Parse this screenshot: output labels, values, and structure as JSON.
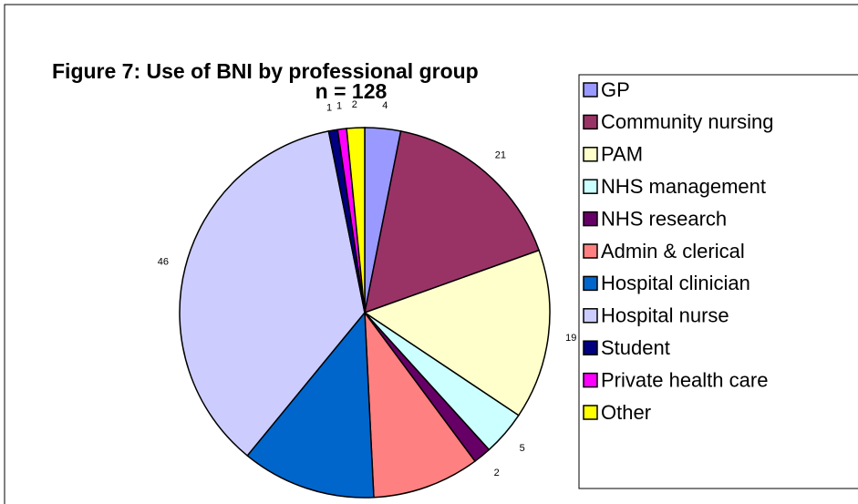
{
  "chart_data": {
    "type": "pie",
    "title": "Figure 7: Use of BNI by professional group",
    "subtitle": "n = 128",
    "categories": [
      "GP",
      "Community nursing",
      "PAM",
      "NHS management",
      "NHS research",
      "Admin & clerical",
      "Hospital clinician",
      "Hospital nurse",
      "Student",
      "Private health care",
      "Other"
    ],
    "values": [
      4,
      21,
      19,
      5,
      2,
      12,
      15,
      46,
      1,
      1,
      2
    ],
    "colors": [
      "#9999ff",
      "#993366",
      "#ffffcc",
      "#ccffff",
      "#660066",
      "#ff8080",
      "#0066cc",
      "#ccccff",
      "#000080",
      "#ff00ff",
      "#ffff00"
    ],
    "legend": "right"
  }
}
